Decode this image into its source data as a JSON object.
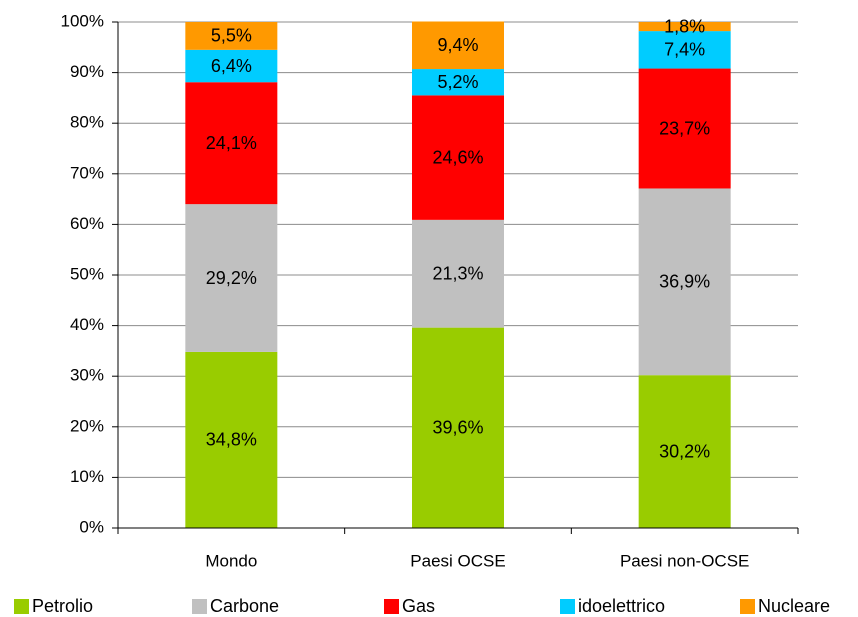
{
  "chart_data": {
    "type": "stacked_bar",
    "categories": [
      "Mondo",
      "Paesi OCSE",
      "Paesi non-OCSE"
    ],
    "series": [
      {
        "name": "Petrolio",
        "color": "#99cc00",
        "values": [
          34.8,
          39.6,
          30.2
        ],
        "value_labels": [
          "34,8%",
          "39,6%",
          "30,2%"
        ]
      },
      {
        "name": "Carbone",
        "color": "#c0c0c0",
        "values": [
          29.2,
          21.3,
          36.9
        ],
        "value_labels": [
          "29,2%",
          "21,3%",
          "36,9%"
        ]
      },
      {
        "name": "Gas",
        "color": "#ff0000",
        "values": [
          24.1,
          24.6,
          23.7
        ],
        "value_labels": [
          "24,1%",
          "24,6%",
          "23,7%"
        ]
      },
      {
        "name": "idoelettrico",
        "color": "#00ccff",
        "values": [
          6.4,
          5.2,
          7.4
        ],
        "value_labels": [
          "6,4%",
          "5,2%",
          "7,4%"
        ]
      },
      {
        "name": "Nucleare",
        "color": "#ff9900",
        "values": [
          5.5,
          9.4,
          1.8
        ],
        "value_labels": [
          "5,5%",
          "9,4%",
          "1,8%"
        ]
      }
    ],
    "ylim": [
      0,
      100
    ],
    "yticks": [
      {
        "value": 0,
        "label": "0%"
      },
      {
        "value": 10,
        "label": "10%"
      },
      {
        "value": 20,
        "label": "20%"
      },
      {
        "value": 30,
        "label": "30%"
      },
      {
        "value": 40,
        "label": "40%"
      },
      {
        "value": 50,
        "label": "50%"
      },
      {
        "value": 60,
        "label": "60%"
      },
      {
        "value": 70,
        "label": "70%"
      },
      {
        "value": 80,
        "label": "80%"
      },
      {
        "value": 90,
        "label": "90%"
      },
      {
        "value": 100,
        "label": "100%"
      }
    ],
    "grid": true,
    "legend": "bottom"
  }
}
